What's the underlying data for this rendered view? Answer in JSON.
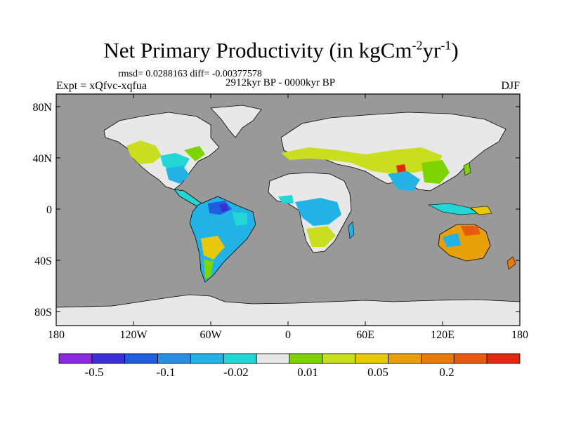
{
  "title": {
    "main": "Net Primary Productivity (in kgCm",
    "exp1": "-2",
    "mid": "yr",
    "exp2": "-1",
    "end": ")"
  },
  "stats_line": "rmsd= 0.0288163 diff= -0.00377578",
  "period": "2912kyr BP - 0000kyr BP",
  "experiment": "Expt = xQfvc-xqfua",
  "season": "DJF",
  "axes": {
    "y_ticks": [
      "80N",
      "40N",
      "0",
      "40S",
      "80S"
    ],
    "x_ticks": [
      "180",
      "120W",
      "60W",
      "0",
      "60E",
      "120E",
      "180"
    ]
  },
  "colorbar": {
    "colors": [
      "#8a2be2",
      "#3a2fd6",
      "#1e5fe0",
      "#2a8fe0",
      "#22b2e6",
      "#22d6d6",
      "#e6e6e6",
      "#7ed400",
      "#c8de1e",
      "#e8c80a",
      "#e8a00a",
      "#e87a0a",
      "#e85a10",
      "#e02a10"
    ],
    "labels": [
      "-0.5",
      "-0.1",
      "-0.02",
      "0.01",
      "0.05",
      "0.2"
    ]
  },
  "colors": {
    "ocean": "#999999",
    "land_no_change": "#e8e8e8",
    "outline": "#000000"
  }
}
